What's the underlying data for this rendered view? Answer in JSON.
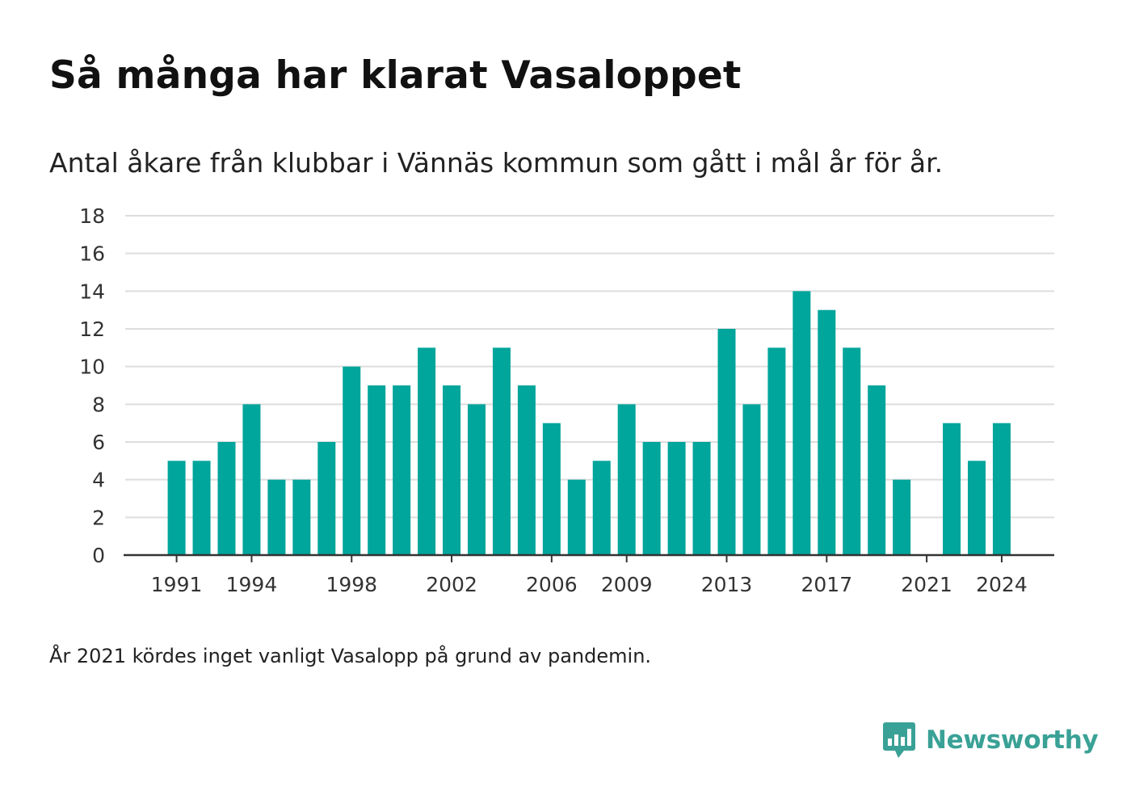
{
  "header": {
    "title": "Så många har klarat Vasaloppet",
    "subtitle": "Antal åkare från klubbar i Vännäs kommun som gått i mål år för år."
  },
  "footnote": "År 2021 kördes inget vanligt Vasalopp på grund av pandemin.",
  "brand": {
    "name": "Newsworthy",
    "icon": "newsworthy-logo-icon",
    "color": "#3aa196"
  },
  "colors": {
    "bar": "#00a59b",
    "grid": "#dddddd",
    "axis": "#333333"
  },
  "chart_data": {
    "type": "bar",
    "title": "Så många har klarat Vasaloppet",
    "subtitle": "Antal åkare från klubbar i Vännäs kommun som gått i mål år för år.",
    "xlabel": "",
    "ylabel": "",
    "categories": [
      1991,
      1992,
      1993,
      1994,
      1995,
      1996,
      1997,
      1998,
      1999,
      2000,
      2001,
      2002,
      2003,
      2004,
      2005,
      2006,
      2007,
      2008,
      2009,
      2010,
      2011,
      2012,
      2013,
      2014,
      2015,
      2016,
      2017,
      2018,
      2019,
      2020,
      2021,
      2022,
      2023,
      2024
    ],
    "values": [
      5,
      5,
      6,
      8,
      4,
      4,
      6,
      10,
      9,
      9,
      11,
      9,
      8,
      11,
      9,
      7,
      4,
      5,
      8,
      6,
      6,
      6,
      12,
      8,
      11,
      14,
      13,
      11,
      9,
      4,
      0,
      7,
      5,
      7
    ],
    "x_tick_labels": [
      "1991",
      "1994",
      "1998",
      "2002",
      "2006",
      "2009",
      "2013",
      "2017",
      "2021",
      "2024"
    ],
    "y_ticks": [
      0,
      2,
      4,
      6,
      8,
      10,
      12,
      14,
      16,
      18
    ],
    "ylim": [
      0,
      18
    ],
    "grid": true,
    "legend": "none"
  }
}
